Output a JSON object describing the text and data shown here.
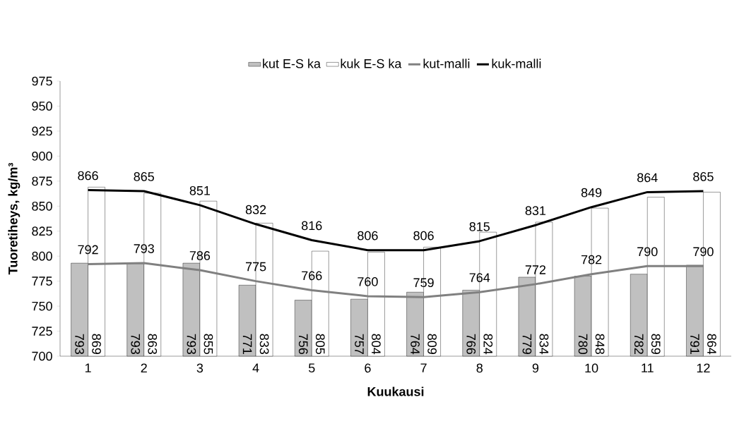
{
  "chart_data": {
    "type": "bar",
    "xlabel": "Kuukausi",
    "ylabel": "Tuoretiheys, kg/m³",
    "categories": [
      "1",
      "2",
      "3",
      "4",
      "5",
      "6",
      "7",
      "8",
      "9",
      "10",
      "11",
      "12"
    ],
    "series": [
      {
        "name": "kut E-S ka",
        "color": "#c0c0c0",
        "values": [
          793,
          793,
          793,
          771,
          756,
          757,
          764,
          766,
          779,
          780,
          782,
          791
        ]
      },
      {
        "name": "kuk E-S ka",
        "color": "#ffffff",
        "values": [
          869,
          863,
          855,
          833,
          805,
          804,
          809,
          824,
          834,
          848,
          859,
          864
        ]
      },
      {
        "name": "kut-malli",
        "type": "line",
        "color": "#808080",
        "values": [
          792,
          793,
          786,
          775,
          766,
          760,
          759,
          764,
          772,
          782,
          790,
          790
        ]
      },
      {
        "name": "kuk-malli",
        "type": "line",
        "color": "#000000",
        "values": [
          866,
          865,
          851,
          832,
          816,
          806,
          806,
          815,
          831,
          849,
          864,
          865
        ]
      }
    ],
    "ylim": [
      700,
      975
    ],
    "yticks": [
      700,
      725,
      750,
      775,
      800,
      825,
      850,
      875,
      900,
      925,
      950,
      975
    ],
    "data_labels": true,
    "legend": "top",
    "marker": "none",
    "line_style": "solid"
  }
}
